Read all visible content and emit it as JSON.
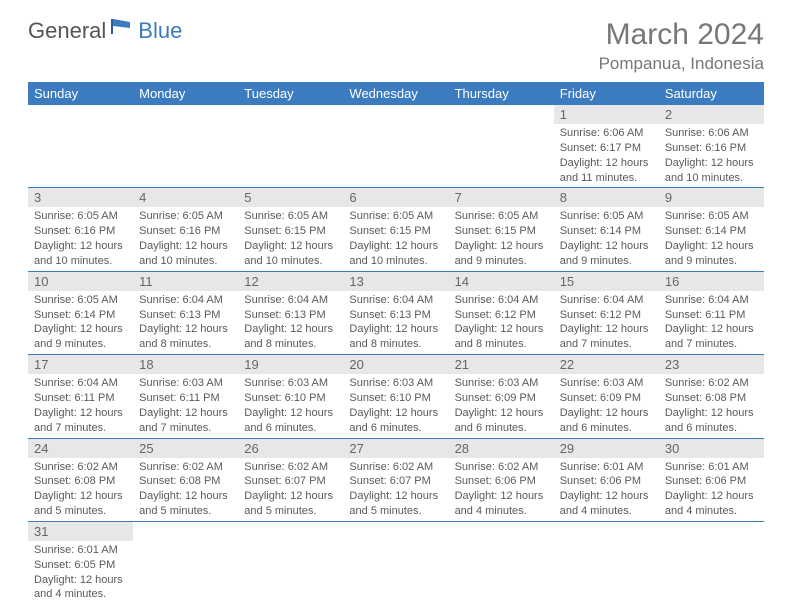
{
  "logo": {
    "general": "General",
    "blue": "Blue"
  },
  "title": {
    "month_year": "March 2024",
    "location": "Pompanua, Indonesia"
  },
  "colors": {
    "accent": "#3b7bbf",
    "gray_bg": "#e7e7e7",
    "text": "#5a5a5a",
    "title_text": "#777"
  },
  "day_headers": [
    "Sunday",
    "Monday",
    "Tuesday",
    "Wednesday",
    "Thursday",
    "Friday",
    "Saturday"
  ],
  "weeks": [
    [
      null,
      null,
      null,
      null,
      null,
      {
        "n": "1",
        "sr": "Sunrise: 6:06 AM",
        "ss": "Sunset: 6:17 PM",
        "dl1": "Daylight: 12 hours",
        "dl2": "and 11 minutes."
      },
      {
        "n": "2",
        "sr": "Sunrise: 6:06 AM",
        "ss": "Sunset: 6:16 PM",
        "dl1": "Daylight: 12 hours",
        "dl2": "and 10 minutes."
      }
    ],
    [
      {
        "n": "3",
        "sr": "Sunrise: 6:05 AM",
        "ss": "Sunset: 6:16 PM",
        "dl1": "Daylight: 12 hours",
        "dl2": "and 10 minutes."
      },
      {
        "n": "4",
        "sr": "Sunrise: 6:05 AM",
        "ss": "Sunset: 6:16 PM",
        "dl1": "Daylight: 12 hours",
        "dl2": "and 10 minutes."
      },
      {
        "n": "5",
        "sr": "Sunrise: 6:05 AM",
        "ss": "Sunset: 6:15 PM",
        "dl1": "Daylight: 12 hours",
        "dl2": "and 10 minutes."
      },
      {
        "n": "6",
        "sr": "Sunrise: 6:05 AM",
        "ss": "Sunset: 6:15 PM",
        "dl1": "Daylight: 12 hours",
        "dl2": "and 10 minutes."
      },
      {
        "n": "7",
        "sr": "Sunrise: 6:05 AM",
        "ss": "Sunset: 6:15 PM",
        "dl1": "Daylight: 12 hours",
        "dl2": "and 9 minutes."
      },
      {
        "n": "8",
        "sr": "Sunrise: 6:05 AM",
        "ss": "Sunset: 6:14 PM",
        "dl1": "Daylight: 12 hours",
        "dl2": "and 9 minutes."
      },
      {
        "n": "9",
        "sr": "Sunrise: 6:05 AM",
        "ss": "Sunset: 6:14 PM",
        "dl1": "Daylight: 12 hours",
        "dl2": "and 9 minutes."
      }
    ],
    [
      {
        "n": "10",
        "sr": "Sunrise: 6:05 AM",
        "ss": "Sunset: 6:14 PM",
        "dl1": "Daylight: 12 hours",
        "dl2": "and 9 minutes."
      },
      {
        "n": "11",
        "sr": "Sunrise: 6:04 AM",
        "ss": "Sunset: 6:13 PM",
        "dl1": "Daylight: 12 hours",
        "dl2": "and 8 minutes."
      },
      {
        "n": "12",
        "sr": "Sunrise: 6:04 AM",
        "ss": "Sunset: 6:13 PM",
        "dl1": "Daylight: 12 hours",
        "dl2": "and 8 minutes."
      },
      {
        "n": "13",
        "sr": "Sunrise: 6:04 AM",
        "ss": "Sunset: 6:13 PM",
        "dl1": "Daylight: 12 hours",
        "dl2": "and 8 minutes."
      },
      {
        "n": "14",
        "sr": "Sunrise: 6:04 AM",
        "ss": "Sunset: 6:12 PM",
        "dl1": "Daylight: 12 hours",
        "dl2": "and 8 minutes."
      },
      {
        "n": "15",
        "sr": "Sunrise: 6:04 AM",
        "ss": "Sunset: 6:12 PM",
        "dl1": "Daylight: 12 hours",
        "dl2": "and 7 minutes."
      },
      {
        "n": "16",
        "sr": "Sunrise: 6:04 AM",
        "ss": "Sunset: 6:11 PM",
        "dl1": "Daylight: 12 hours",
        "dl2": "and 7 minutes."
      }
    ],
    [
      {
        "n": "17",
        "sr": "Sunrise: 6:04 AM",
        "ss": "Sunset: 6:11 PM",
        "dl1": "Daylight: 12 hours",
        "dl2": "and 7 minutes."
      },
      {
        "n": "18",
        "sr": "Sunrise: 6:03 AM",
        "ss": "Sunset: 6:11 PM",
        "dl1": "Daylight: 12 hours",
        "dl2": "and 7 minutes."
      },
      {
        "n": "19",
        "sr": "Sunrise: 6:03 AM",
        "ss": "Sunset: 6:10 PM",
        "dl1": "Daylight: 12 hours",
        "dl2": "and 6 minutes."
      },
      {
        "n": "20",
        "sr": "Sunrise: 6:03 AM",
        "ss": "Sunset: 6:10 PM",
        "dl1": "Daylight: 12 hours",
        "dl2": "and 6 minutes."
      },
      {
        "n": "21",
        "sr": "Sunrise: 6:03 AM",
        "ss": "Sunset: 6:09 PM",
        "dl1": "Daylight: 12 hours",
        "dl2": "and 6 minutes."
      },
      {
        "n": "22",
        "sr": "Sunrise: 6:03 AM",
        "ss": "Sunset: 6:09 PM",
        "dl1": "Daylight: 12 hours",
        "dl2": "and 6 minutes."
      },
      {
        "n": "23",
        "sr": "Sunrise: 6:02 AM",
        "ss": "Sunset: 6:08 PM",
        "dl1": "Daylight: 12 hours",
        "dl2": "and 6 minutes."
      }
    ],
    [
      {
        "n": "24",
        "sr": "Sunrise: 6:02 AM",
        "ss": "Sunset: 6:08 PM",
        "dl1": "Daylight: 12 hours",
        "dl2": "and 5 minutes."
      },
      {
        "n": "25",
        "sr": "Sunrise: 6:02 AM",
        "ss": "Sunset: 6:08 PM",
        "dl1": "Daylight: 12 hours",
        "dl2": "and 5 minutes."
      },
      {
        "n": "26",
        "sr": "Sunrise: 6:02 AM",
        "ss": "Sunset: 6:07 PM",
        "dl1": "Daylight: 12 hours",
        "dl2": "and 5 minutes."
      },
      {
        "n": "27",
        "sr": "Sunrise: 6:02 AM",
        "ss": "Sunset: 6:07 PM",
        "dl1": "Daylight: 12 hours",
        "dl2": "and 5 minutes."
      },
      {
        "n": "28",
        "sr": "Sunrise: 6:02 AM",
        "ss": "Sunset: 6:06 PM",
        "dl1": "Daylight: 12 hours",
        "dl2": "and 4 minutes."
      },
      {
        "n": "29",
        "sr": "Sunrise: 6:01 AM",
        "ss": "Sunset: 6:06 PM",
        "dl1": "Daylight: 12 hours",
        "dl2": "and 4 minutes."
      },
      {
        "n": "30",
        "sr": "Sunrise: 6:01 AM",
        "ss": "Sunset: 6:06 PM",
        "dl1": "Daylight: 12 hours",
        "dl2": "and 4 minutes."
      }
    ],
    [
      {
        "n": "31",
        "sr": "Sunrise: 6:01 AM",
        "ss": "Sunset: 6:05 PM",
        "dl1": "Daylight: 12 hours",
        "dl2": "and 4 minutes."
      },
      null,
      null,
      null,
      null,
      null,
      null
    ]
  ]
}
